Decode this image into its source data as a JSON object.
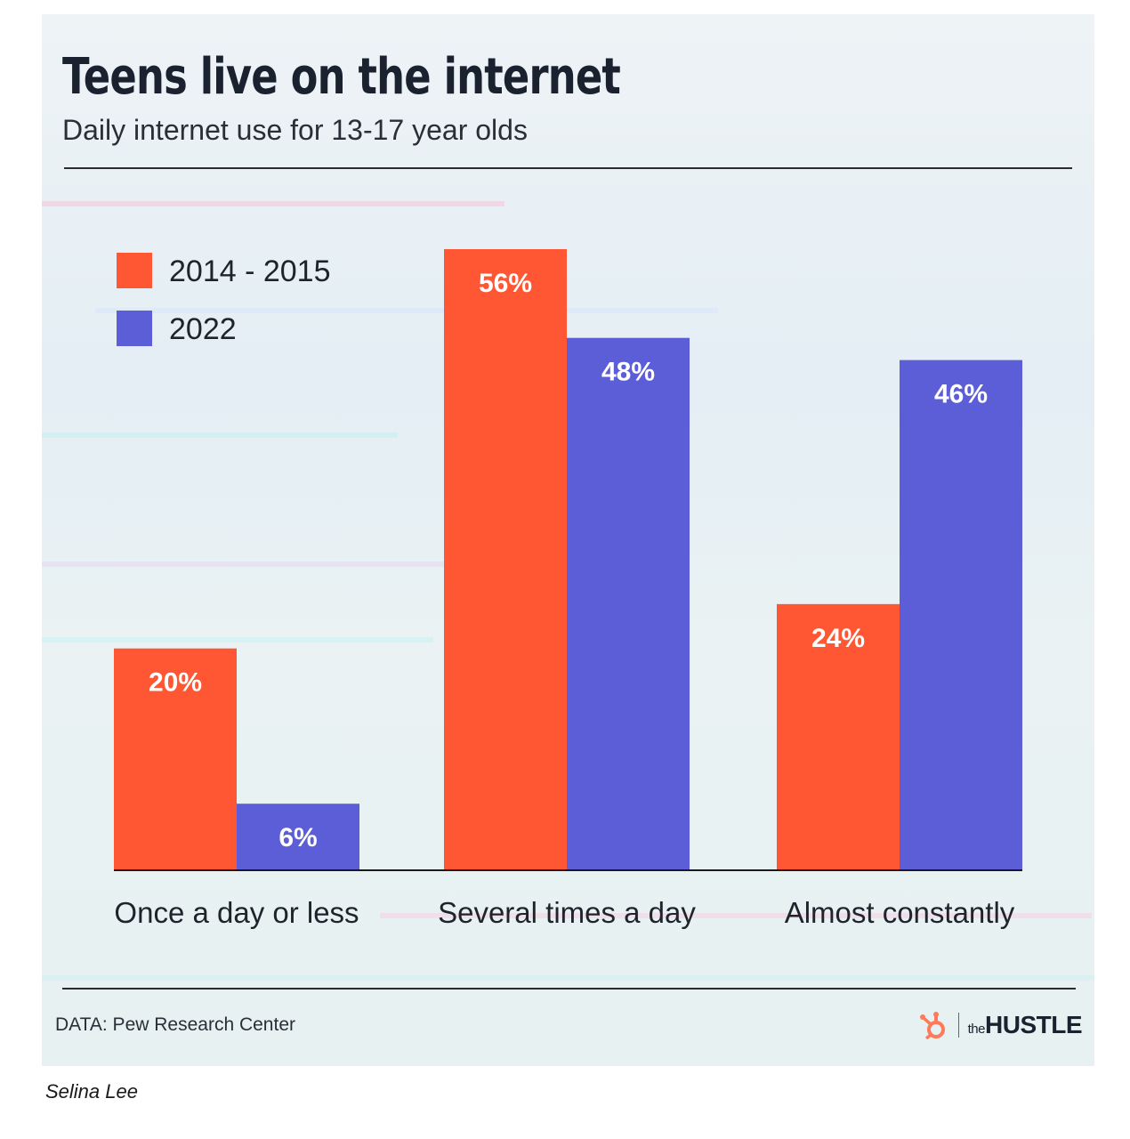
{
  "header": {
    "title": "Teens live on the internet",
    "subtitle": "Daily internet use for 13-17 year olds"
  },
  "footer": {
    "source": "DATA: Pew Research Center",
    "brand_small": "the",
    "brand_big": "HUSTLE",
    "credit": "Selina Lee"
  },
  "colors": {
    "series_2014": "#ff5733",
    "series_2022": "#5c5ed8",
    "text_dark": "#1a2230",
    "brand_orange": "#ff7a59"
  },
  "chart_data": {
    "type": "bar",
    "categories": [
      "Once a day or less",
      "Several times a day",
      "Almost constantly"
    ],
    "series": [
      {
        "name": "2014 - 2015",
        "values": [
          20,
          56,
          24
        ],
        "labels": [
          "20%",
          "56%",
          "24%"
        ]
      },
      {
        "name": "2022",
        "values": [
          6,
          48,
          46
        ],
        "labels": [
          "6%",
          "48%",
          "46%"
        ]
      }
    ],
    "ylim": [
      0,
      56
    ],
    "grid": false,
    "legend": "top-left",
    "xlabel": "",
    "ylabel": ""
  }
}
